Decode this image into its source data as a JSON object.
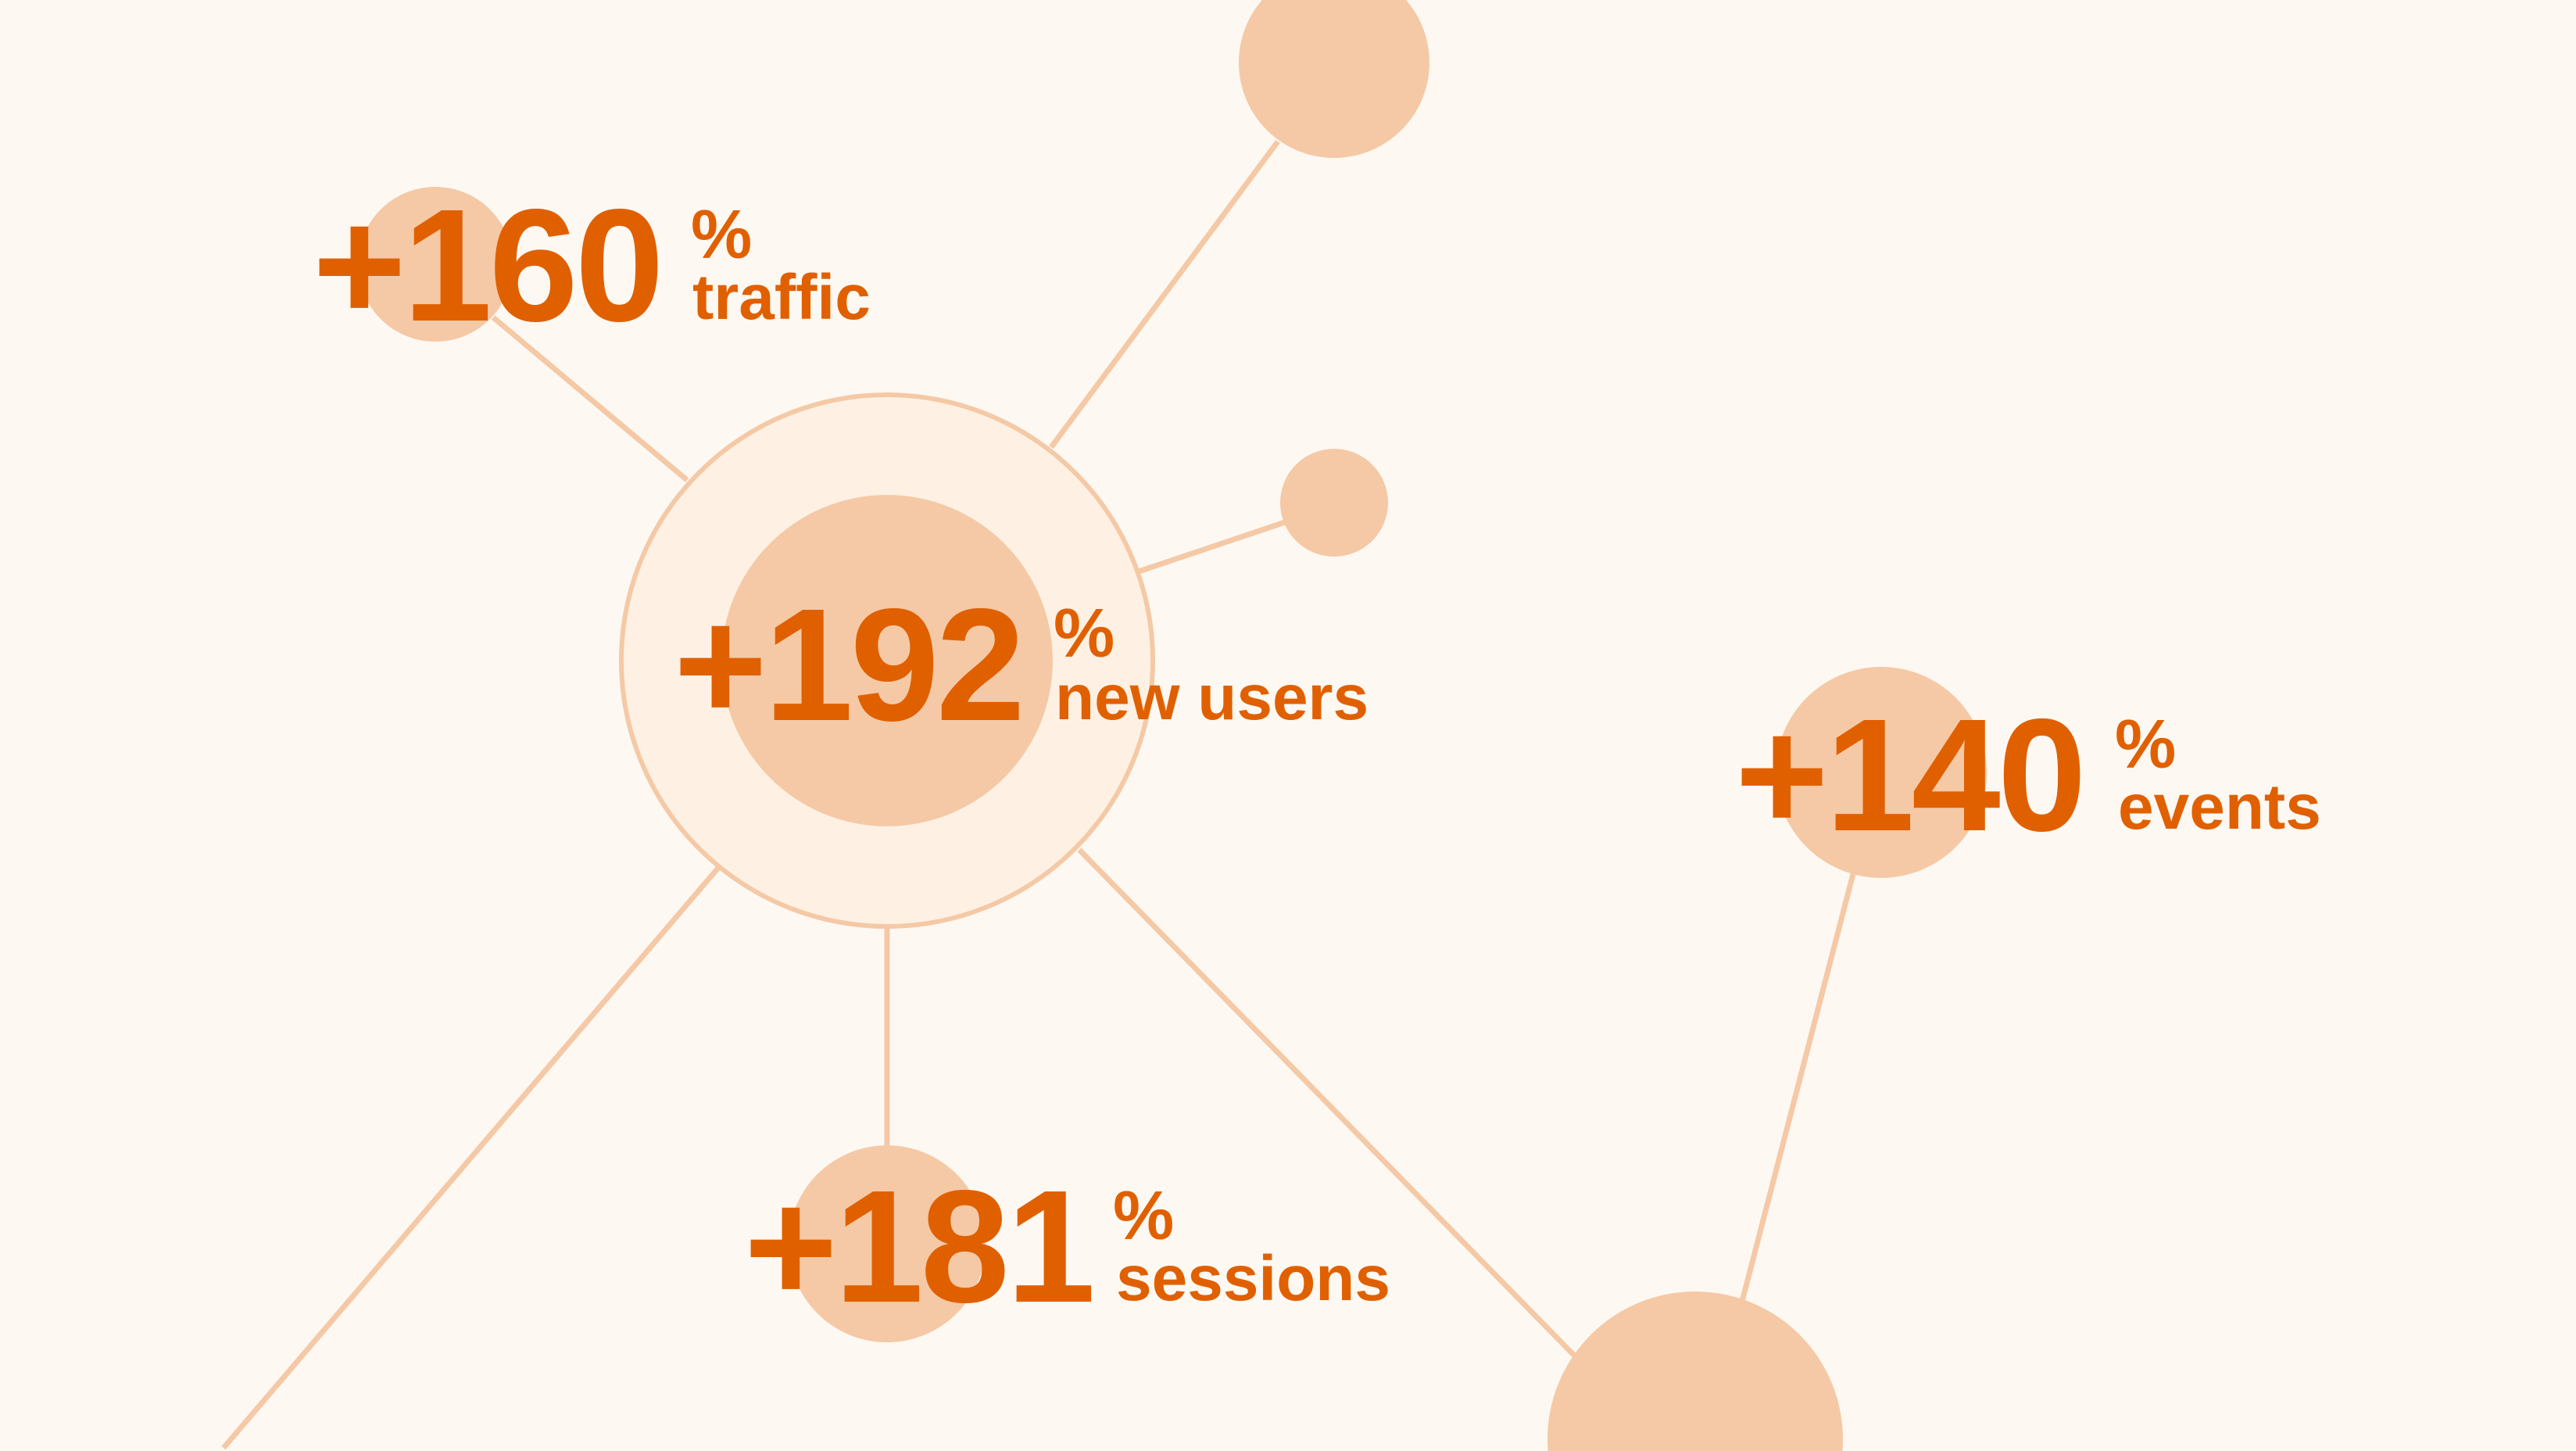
{
  "colors": {
    "background": "#fdf8f2",
    "node": "#f5c9a6",
    "ring_fill": "#fef1e3",
    "accent": "#e06000"
  },
  "stats": [
    {
      "value": "+160",
      "unit": "%",
      "label": "traffic"
    },
    {
      "value": "+192",
      "unit": "%",
      "label": "new users"
    },
    {
      "value": "+140",
      "unit": "%",
      "label": "events"
    },
    {
      "value": "+181",
      "unit": "%",
      "label": "sessions"
    }
  ]
}
